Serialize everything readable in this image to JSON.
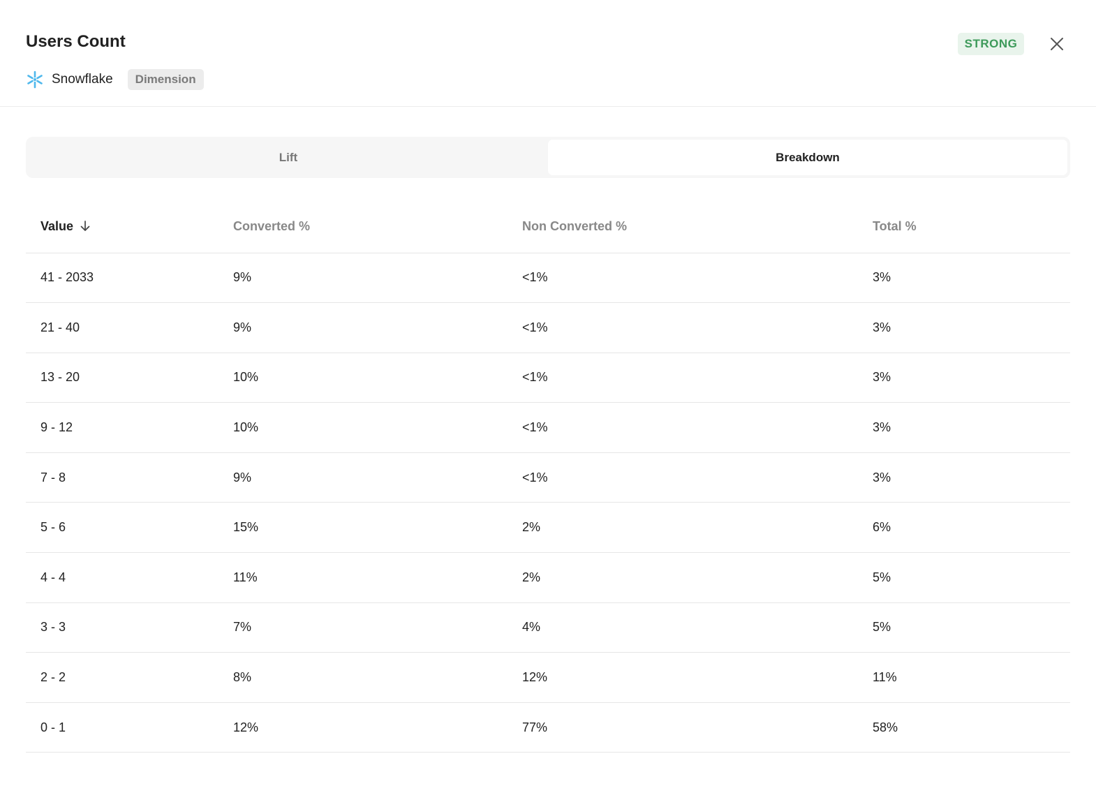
{
  "header": {
    "title": "Users Count",
    "source": "Snowflake",
    "source_icon": "snowflake-icon",
    "type_badge": "Dimension",
    "strength_badge": "STRONG",
    "strength_color": "#3d9a5a",
    "close_icon": "close-icon"
  },
  "tabs": [
    {
      "label": "Lift",
      "active": false
    },
    {
      "label": "Breakdown",
      "active": true
    }
  ],
  "table": {
    "columns": [
      "Value",
      "Converted %",
      "Non Converted %",
      "Total %"
    ],
    "sort": {
      "column": "Value",
      "direction": "descending",
      "icon": "arrow-down-icon"
    },
    "rows": [
      [
        "41 - 2033",
        "9%",
        "<1%",
        "3%"
      ],
      [
        "21 - 40",
        "9%",
        "<1%",
        "3%"
      ],
      [
        "13 - 20",
        "10%",
        "<1%",
        "3%"
      ],
      [
        "9 - 12",
        "10%",
        "<1%",
        "3%"
      ],
      [
        "7 - 8",
        "9%",
        "<1%",
        "3%"
      ],
      [
        "5 - 6",
        "15%",
        "2%",
        "6%"
      ],
      [
        "4 - 4",
        "11%",
        "2%",
        "5%"
      ],
      [
        "3 - 3",
        "7%",
        "4%",
        "5%"
      ],
      [
        "2 - 2",
        "8%",
        "12%",
        "11%"
      ],
      [
        "0 - 1",
        "12%",
        "77%",
        "58%"
      ]
    ]
  }
}
